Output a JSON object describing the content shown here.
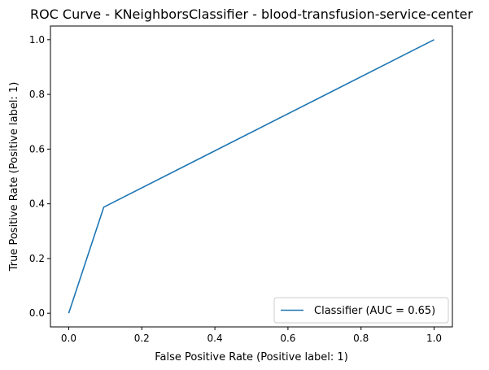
{
  "chart_data": {
    "type": "line",
    "title": "ROC Curve - KNeighborsClassifier - blood-transfusion-service-center",
    "xlabel": "False Positive Rate (Positive label: 1)",
    "ylabel": "True Positive Rate (Positive label: 1)",
    "xlim": [
      -0.05,
      1.05
    ],
    "ylim": [
      -0.05,
      1.05
    ],
    "x_ticks": [
      "0.0",
      "0.2",
      "0.4",
      "0.6",
      "0.8",
      "1.0"
    ],
    "y_ticks": [
      "0.0",
      "0.2",
      "0.4",
      "0.6",
      "0.8",
      "1.0"
    ],
    "grid": false,
    "legend_position": "lower-right",
    "series": [
      {
        "name": "Classifier (AUC = 0.65)",
        "color": "#1f77b4",
        "x": [
          0.0,
          0.096,
          1.0
        ],
        "y": [
          0.0,
          0.388,
          1.0
        ]
      }
    ]
  }
}
